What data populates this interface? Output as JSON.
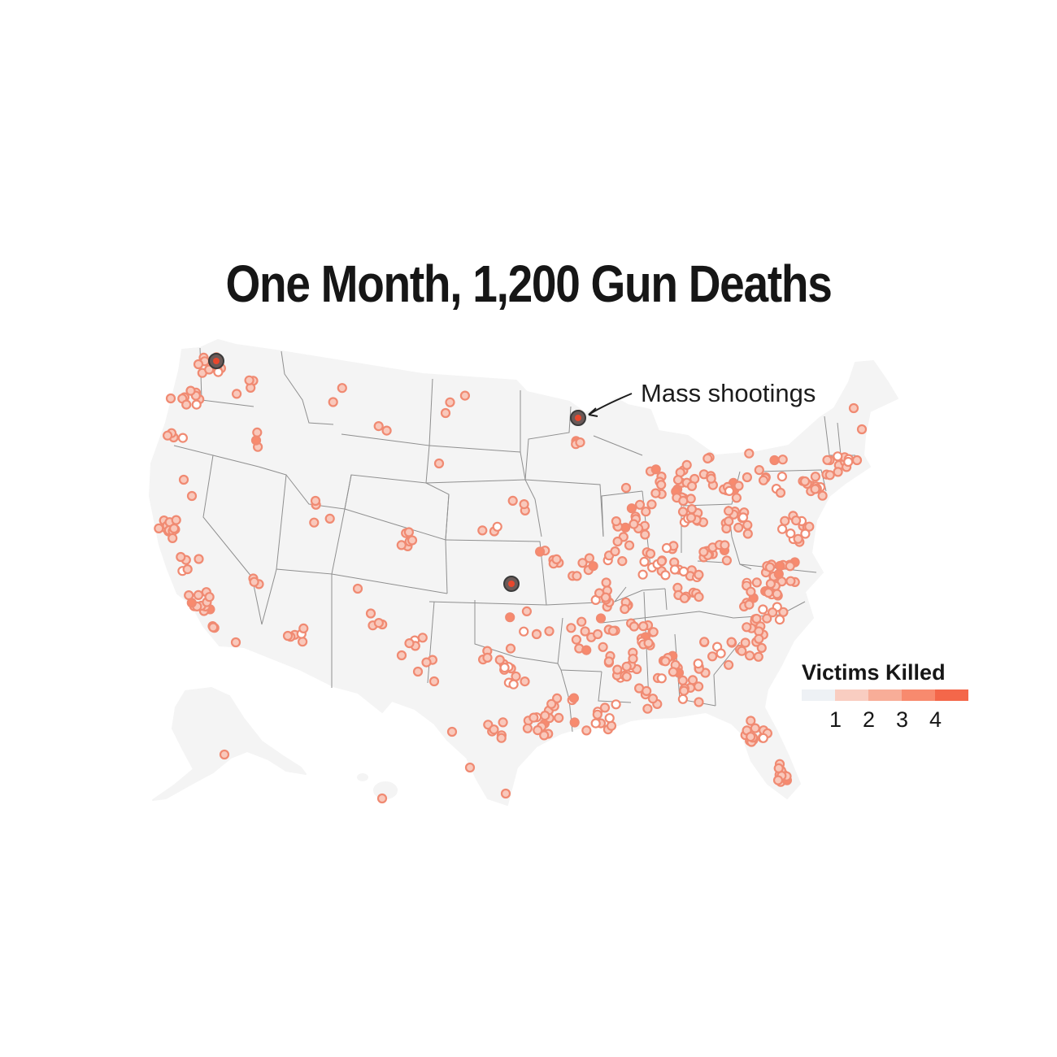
{
  "title": "One Month, 1,200 Gun Deaths",
  "annotation": "Mass shootings",
  "legend": {
    "title": "Victims Killed",
    "ticks": [
      "1",
      "2",
      "3",
      "4"
    ],
    "colors": [
      "#eef1f5",
      "#f9cdc1",
      "#f8ad98",
      "#f88a6e",
      "#f4674a"
    ]
  },
  "colors": {
    "land": "#f4f4f4",
    "state_border": "#8f8f8f",
    "dot_fill": "#f9c8bb",
    "dot_stroke": "#f08a72",
    "mass_shooting_ring": "#3a3a3a",
    "mass_shooting_core": "#e8472d"
  },
  "encoding": "Each circle is one shooting incident; circle color shows number of victims killed"
}
